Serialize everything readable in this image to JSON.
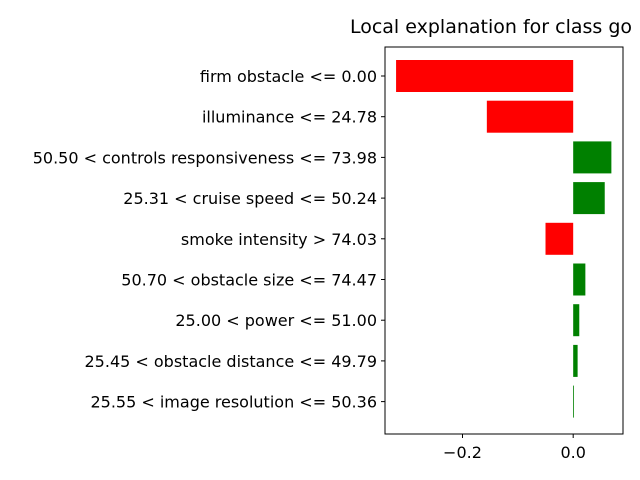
{
  "chart_data": {
    "type": "bar",
    "orientation": "horizontal",
    "title": "Local explanation for class go",
    "xlabel": "",
    "ylabel": "",
    "xlim": [
      -0.34,
      0.09
    ],
    "xticks": [
      -0.2,
      0.0
    ],
    "xtick_labels": [
      "−0.2",
      "0.0"
    ],
    "grid": false,
    "legend": "none",
    "positive_color": "#008000",
    "negative_color": "#ff0000",
    "categories": [
      "firm obstacle <= 0.00",
      "illuminance <= 24.78",
      "50.50 < controls responsiveness <= 73.98",
      "25.31 < cruise speed <= 50.24",
      "smoke intensity > 74.03",
      "50.70 < obstacle size <= 74.47",
      "25.00 < power <= 51.00",
      "25.45 < obstacle distance <= 49.79",
      "25.55 < image resolution <= 50.36"
    ],
    "values": [
      -0.32,
      -0.156,
      0.069,
      0.057,
      -0.05,
      0.022,
      0.011,
      0.008,
      0.001
    ]
  }
}
